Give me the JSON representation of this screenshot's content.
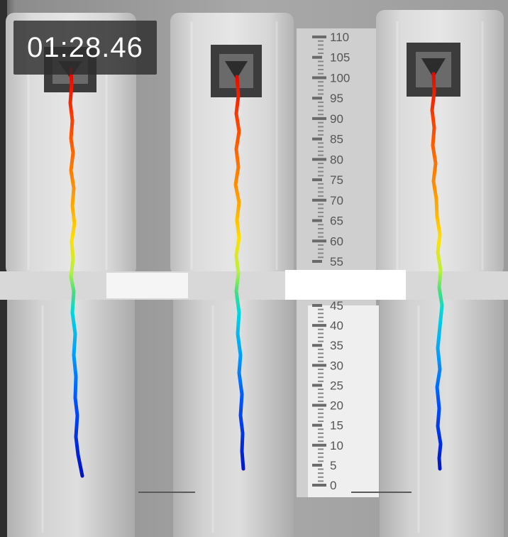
{
  "timer": {
    "elapsed": "01:28.46"
  },
  "ruler": {
    "labels": [
      "110",
      "105",
      "100",
      "95",
      "90",
      "85",
      "80",
      "75",
      "70",
      "65",
      "60",
      "55",
      "45",
      "40",
      "35",
      "30",
      "25",
      "20",
      "15",
      "10",
      "5",
      "0"
    ]
  },
  "colors": {
    "background": "#9a9a9a",
    "trace_gradient_top_to_bottom": [
      "#e00000",
      "#ff5a00",
      "#ff9900",
      "#ffe000",
      "#c8f000",
      "#40e080",
      "#00d8e0",
      "#00a0ff",
      "#0050ff",
      "#0010d0"
    ]
  },
  "traces": [
    {
      "name": "left-column-trace"
    },
    {
      "name": "middle-column-trace"
    },
    {
      "name": "right-column-trace"
    }
  ]
}
